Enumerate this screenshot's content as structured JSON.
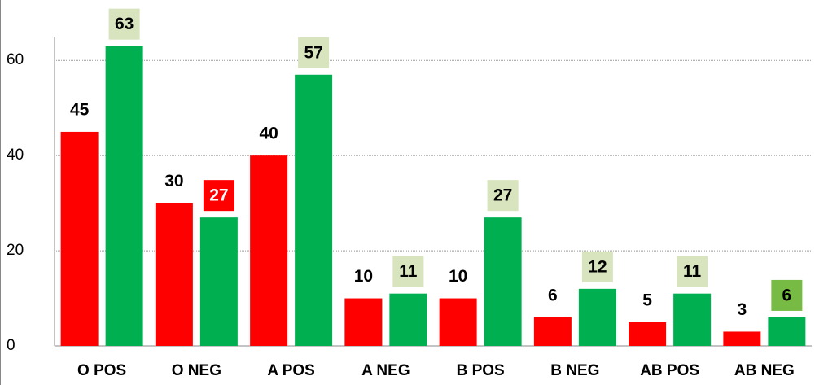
{
  "chart_data": {
    "type": "bar",
    "categories": [
      "O POS",
      "O NEG",
      "A POS",
      "A NEG",
      "B POS",
      "B NEG",
      "AB POS",
      "AB NEG"
    ],
    "series": [
      {
        "color": "#ff0000",
        "values": [
          45,
          30,
          40,
          10,
          10,
          6,
          5,
          3
        ]
      },
      {
        "color": "#00b050",
        "values": [
          63,
          27,
          57,
          11,
          27,
          12,
          11,
          6
        ],
        "label_backgrounds": [
          "#d7e4bd",
          "#ff0000",
          "#d7e4bd",
          "#d7e4bd",
          "#d7e4bd",
          "#d7e4bd",
          "#d7e4bd",
          "#77bb44"
        ],
        "label_colors": [
          "#000000",
          "#ffffff",
          "#000000",
          "#000000",
          "#000000",
          "#000000",
          "#000000",
          "#000000"
        ]
      }
    ],
    "ylim": [
      0,
      65
    ],
    "yticks": [
      0,
      20,
      40,
      60
    ],
    "grid": true
  }
}
